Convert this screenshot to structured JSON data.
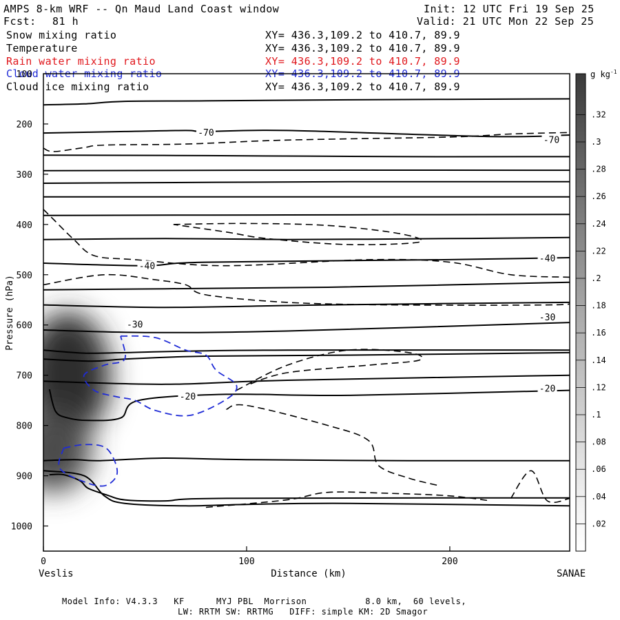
{
  "header": {
    "title": "AMPS 8-km WRF -- Qn Maud Land Coast window",
    "init": "Init: 12 UTC Fri 19 Sep 25",
    "fcst_label": "Fcst:",
    "fcst_value": "81 h",
    "valid": "Valid: 21 UTC Mon 22 Sep 25"
  },
  "fields": [
    {
      "name": "Snow mixing ratio",
      "xy": "XY= 436.3,109.2 to 410.7, 89.9",
      "color": "#000000"
    },
    {
      "name": "Temperature",
      "xy": "XY= 436.3,109.2 to 410.7, 89.9",
      "color": "#000000"
    },
    {
      "name": "Rain water mixing ratio",
      "xy": "XY= 436.3,109.2 to 410.7, 89.9",
      "color": "#e0161b"
    },
    {
      "name": "Cloud water mixing ratio",
      "xy": "XY= 436.3,109.2 to 410.7, 89.9",
      "color": "#1f2bd6"
    },
    {
      "name": "Cloud ice mixing ratio",
      "xy": "XY= 436.3,109.2 to 410.7, 89.9",
      "color": "#000000"
    }
  ],
  "footer": {
    "line1": "Model Info: V4.3.3   KF      MYJ PBL  Morrison           8.0 km,  60 levels,",
    "line2": "LW: RRTM SW: RRTMG   DIFF: simple KM: 2D Smagor"
  },
  "chart_data": {
    "type": "contour cross-section",
    "xlabel": "Distance (km)",
    "ylabel": "Pressure (hPa)",
    "xlim": [
      0,
      259
    ],
    "ylim": [
      1050,
      100
    ],
    "x_ticks": [
      0,
      100,
      200
    ],
    "y_ticks": [
      100,
      200,
      300,
      400,
      500,
      600,
      700,
      800,
      900,
      1000
    ],
    "endpoints": {
      "left": "Veslis",
      "right": "SANAE"
    },
    "colorbar": {
      "unit": "g kg",
      "unit_exp": "-1",
      "ticks": [
        ".02",
        ".04",
        ".06",
        ".08",
        ".1",
        ".12",
        ".14",
        ".16",
        ".18",
        ".2",
        ".22",
        ".24",
        ".26",
        ".28",
        ".3",
        ".32"
      ],
      "max": 0.34
    },
    "snow_maxima": [
      {
        "x": 12,
        "p": 700,
        "value": 0.33
      },
      {
        "x": 5,
        "p": 850,
        "value": 0.28
      }
    ],
    "temperature_labels": [
      {
        "text": "-70",
        "x": 80,
        "p": 218
      },
      {
        "text": "-70",
        "x": 250,
        "p": 232
      },
      {
        "text": "-40",
        "x": 51,
        "p": 483
      },
      {
        "text": "-40",
        "x": 248,
        "p": 468
      },
      {
        "text": "-30",
        "x": 45,
        "p": 600
      },
      {
        "text": "-30",
        "x": 248,
        "p": 585
      },
      {
        "text": "-20",
        "x": 71,
        "p": 743
      },
      {
        "text": "-20",
        "x": 248,
        "p": 727
      }
    ],
    "temperature_lines": [
      [
        [
          0,
          162
        ],
        [
          20,
          160
        ],
        [
          40,
          155
        ],
        [
          80,
          154
        ],
        [
          150,
          152
        ],
        [
          259,
          150
        ]
      ],
      [
        [
          0,
          218
        ],
        [
          40,
          215
        ],
        [
          70,
          213
        ],
        [
          80,
          215
        ],
        [
          120,
          213
        ],
        [
          220,
          225
        ],
        [
          259,
          222
        ]
      ],
      [
        [
          0,
          262
        ],
        [
          80,
          263
        ],
        [
          180,
          265
        ],
        [
          259,
          265
        ]
      ],
      [
        [
          0,
          293
        ],
        [
          100,
          292
        ],
        [
          259,
          292
        ]
      ],
      [
        [
          0,
          318
        ],
        [
          150,
          315
        ],
        [
          259,
          315
        ]
      ],
      [
        [
          0,
          345
        ],
        [
          259,
          345
        ]
      ],
      [
        [
          0,
          382
        ],
        [
          120,
          381
        ],
        [
          259,
          380
        ]
      ],
      [
        [
          0,
          430
        ],
        [
          60,
          428
        ],
        [
          120,
          430
        ],
        [
          200,
          428
        ],
        [
          259,
          426
        ]
      ],
      [
        [
          0,
          477
        ],
        [
          50,
          482
        ],
        [
          80,
          475
        ],
        [
          200,
          470
        ],
        [
          259,
          466
        ]
      ],
      [
        [
          0,
          530
        ],
        [
          60,
          528
        ],
        [
          140,
          525
        ],
        [
          259,
          515
        ]
      ],
      [
        [
          0,
          560
        ],
        [
          60,
          565
        ],
        [
          140,
          560
        ],
        [
          259,
          555
        ]
      ],
      [
        [
          0,
          610
        ],
        [
          50,
          615
        ],
        [
          120,
          612
        ],
        [
          259,
          595
        ]
      ],
      [
        [
          0,
          650
        ],
        [
          20,
          656
        ],
        [
          40,
          655
        ],
        [
          70,
          652
        ],
        [
          120,
          650
        ],
        [
          259,
          650
        ]
      ],
      [
        [
          0,
          668
        ],
        [
          24,
          672
        ],
        [
          40,
          668
        ],
        [
          80,
          662
        ],
        [
          150,
          660
        ],
        [
          259,
          655
        ]
      ],
      [
        [
          0,
          712
        ],
        [
          60,
          718
        ],
        [
          120,
          710
        ],
        [
          259,
          700
        ]
      ],
      [
        [
          3,
          728
        ],
        [
          6,
          772
        ],
        [
          12,
          785
        ],
        [
          22,
          790
        ],
        [
          38,
          785
        ],
        [
          47,
          750
        ],
        [
          90,
          738
        ],
        [
          150,
          740
        ],
        [
          259,
          730
        ]
      ],
      [
        [
          0,
          870
        ],
        [
          15,
          868
        ],
        [
          28,
          870
        ],
        [
          59,
          865
        ],
        [
          100,
          868
        ],
        [
          180,
          870
        ],
        [
          259,
          870
        ]
      ],
      [
        [
          3,
          898
        ],
        [
          10,
          898
        ],
        [
          18,
          910
        ],
        [
          22,
          925
        ],
        [
          31,
          938
        ],
        [
          40,
          948
        ],
        [
          60,
          950
        ],
        [
          90,
          945
        ],
        [
          259,
          944
        ]
      ],
      [
        [
          0,
          890
        ],
        [
          20,
          900
        ],
        [
          30,
          940
        ],
        [
          40,
          955
        ],
        [
          70,
          960
        ],
        [
          100,
          957
        ],
        [
          150,
          955
        ],
        [
          259,
          960
        ]
      ]
    ],
    "ice_dashed_lines": [
      [
        [
          0,
          248
        ],
        [
          5,
          255
        ],
        [
          20,
          247
        ],
        [
          30,
          242
        ],
        [
          70,
          240
        ],
        [
          120,
          232
        ],
        [
          200,
          226
        ],
        [
          230,
          220
        ],
        [
          259,
          217
        ]
      ],
      [
        [
          0,
          370
        ],
        [
          5,
          390
        ],
        [
          15,
          430
        ],
        [
          25,
          462
        ],
        [
          45,
          470
        ],
        [
          90,
          482
        ],
        [
          160,
          470
        ],
        [
          200,
          475
        ],
        [
          230,
          500
        ],
        [
          259,
          505
        ]
      ],
      [
        [
          0,
          520
        ],
        [
          30,
          500
        ],
        [
          55,
          510
        ],
        [
          70,
          520
        ],
        [
          80,
          540
        ],
        [
          120,
          555
        ],
        [
          170,
          560
        ],
        [
          250,
          560
        ],
        [
          259,
          555
        ]
      ],
      [
        [
          64,
          400
        ],
        [
          100,
          398
        ],
        [
          140,
          402
        ],
        [
          175,
          418
        ],
        [
          185,
          435
        ],
        [
          150,
          440
        ],
        [
          110,
          428
        ],
        [
          90,
          415
        ],
        [
          64,
          400
        ]
      ],
      [
        [
          95,
          730
        ],
        [
          120,
          680
        ],
        [
          150,
          650
        ],
        [
          180,
          655
        ],
        [
          185,
          670
        ],
        [
          160,
          680
        ],
        [
          120,
          695
        ],
        [
          100,
          720
        ]
      ],
      [
        [
          90,
          768
        ],
        [
          100,
          760
        ],
        [
          140,
          800
        ],
        [
          160,
          830
        ],
        [
          165,
          880
        ],
        [
          180,
          905
        ],
        [
          195,
          920
        ]
      ],
      [
        [
          80,
          963
        ],
        [
          120,
          948
        ],
        [
          140,
          933
        ],
        [
          170,
          935
        ],
        [
          200,
          940
        ],
        [
          220,
          950
        ]
      ],
      [
        [
          230,
          945
        ],
        [
          240,
          890
        ],
        [
          248,
          950
        ],
        [
          259,
          945
        ]
      ]
    ],
    "cloud_water_lines": [
      [
        [
          38,
          622
        ],
        [
          55,
          625
        ],
        [
          70,
          650
        ],
        [
          80,
          660
        ],
        [
          85,
          690
        ],
        [
          95,
          720
        ],
        [
          90,
          748
        ],
        [
          72,
          780
        ],
        [
          55,
          770
        ],
        [
          45,
          750
        ],
        [
          35,
          742
        ],
        [
          25,
          730
        ],
        [
          20,
          700
        ],
        [
          30,
          680
        ],
        [
          40,
          668
        ],
        [
          38,
          622
        ]
      ],
      [
        [
          10,
          845
        ],
        [
          20,
          838
        ],
        [
          30,
          843
        ],
        [
          35,
          870
        ],
        [
          36,
          900
        ],
        [
          30,
          920
        ],
        [
          20,
          912
        ],
        [
          8,
          885
        ],
        [
          10,
          845
        ]
      ]
    ]
  }
}
